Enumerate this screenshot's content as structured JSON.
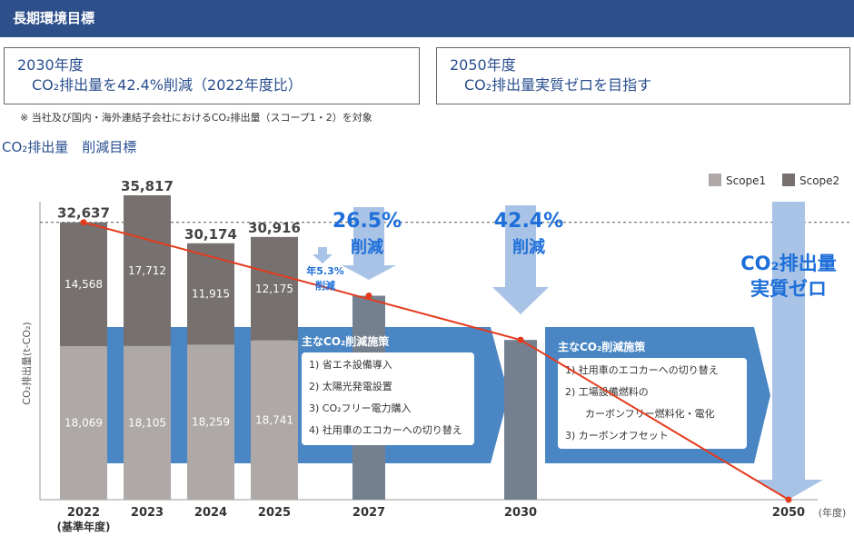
{
  "header": {
    "title": "長期環境目標"
  },
  "goals": {
    "left": {
      "year": "2030年度",
      "desc": "CO₂排出量を42.4%削減（2022年度比）"
    },
    "right": {
      "year": "2050年度",
      "desc": "CO₂排出量実質ゼロを目指す"
    }
  },
  "note": "※ 当社及び国内・海外連結子会社におけるCO₂排出量（スコープ1・2）を対象",
  "chart_title": "CO₂排出量　削減目標",
  "chart_data": {
    "type": "bar",
    "stacked": true,
    "ylabel": "CO₂排出量(t-CO₂)",
    "x_unit": "(年度)",
    "categories": [
      "2022",
      "2023",
      "2024",
      "2025",
      "2027",
      "2030",
      "2050"
    ],
    "category_sublabels": {
      "2022": "(基準年度)"
    },
    "series": [
      {
        "name": "Scope1",
        "color": "#aea8a6",
        "values": [
          18069,
          18105,
          18259,
          18741,
          null,
          null,
          null
        ]
      },
      {
        "name": "Scope2",
        "color": "#76706e",
        "values": [
          14568,
          17712,
          11915,
          12175,
          null,
          null,
          null
        ]
      }
    ],
    "totals": [
      32637,
      35817,
      30174,
      30916,
      null,
      null,
      null
    ],
    "total_labels": [
      "32,637",
      "35,817",
      "30,174",
      "30,916"
    ],
    "scope1_labels": [
      "18,069",
      "18,105",
      "18,259",
      "18,741"
    ],
    "scope2_labels": [
      "14,568",
      "17,712",
      "11,915",
      "12,175"
    ],
    "target_bars": [
      {
        "category": "2027",
        "value": 24000,
        "color": "#74808f"
      },
      {
        "category": "2030",
        "value": 18800,
        "color": "#74808f"
      }
    ],
    "trend_line": {
      "color": "#e53a1c",
      "points": [
        {
          "category": "2022",
          "value": 32637
        },
        {
          "category": "2030",
          "value": 18800
        },
        {
          "category": "2050",
          "value": 0
        }
      ],
      "extra_points": [
        {
          "category": "2027",
          "value": 24000
        }
      ]
    },
    "legend": {
      "position": "top-right"
    },
    "annotations": {
      "pct2027": {
        "main": "26.5%",
        "sub": "削減"
      },
      "rate": {
        "line1": "年5.3%",
        "line2": "削減"
      },
      "pct2030": {
        "main": "42.4%",
        "sub": "削減"
      },
      "zero2050": {
        "line1": "CO₂排出量",
        "line2": "実質ゼロ"
      }
    },
    "measures": [
      {
        "title": "主なCO₂削減施策",
        "items": [
          "1) 省エネ設備導入",
          "2) 太陽光発電設置",
          "3) CO₂フリー電力購入",
          "4) 社用車のエコカーへの切り替え"
        ]
      },
      {
        "title": "主なCO₂削減施策",
        "items": [
          "1) 社用車のエコカーへの切り替え",
          "2) 工場設備燃料の",
          "カーボンフリー燃料化・電化",
          "3) カーボンオフセット"
        ]
      }
    ],
    "colors": {
      "scope1": "#aea8a6",
      "scope2": "#76706e",
      "target": "#74808f",
      "trend": "#e53a1c",
      "arrow_light": "#a9c3e6",
      "band": "#4a86c4",
      "accent_text": "#1e6fd9"
    }
  }
}
